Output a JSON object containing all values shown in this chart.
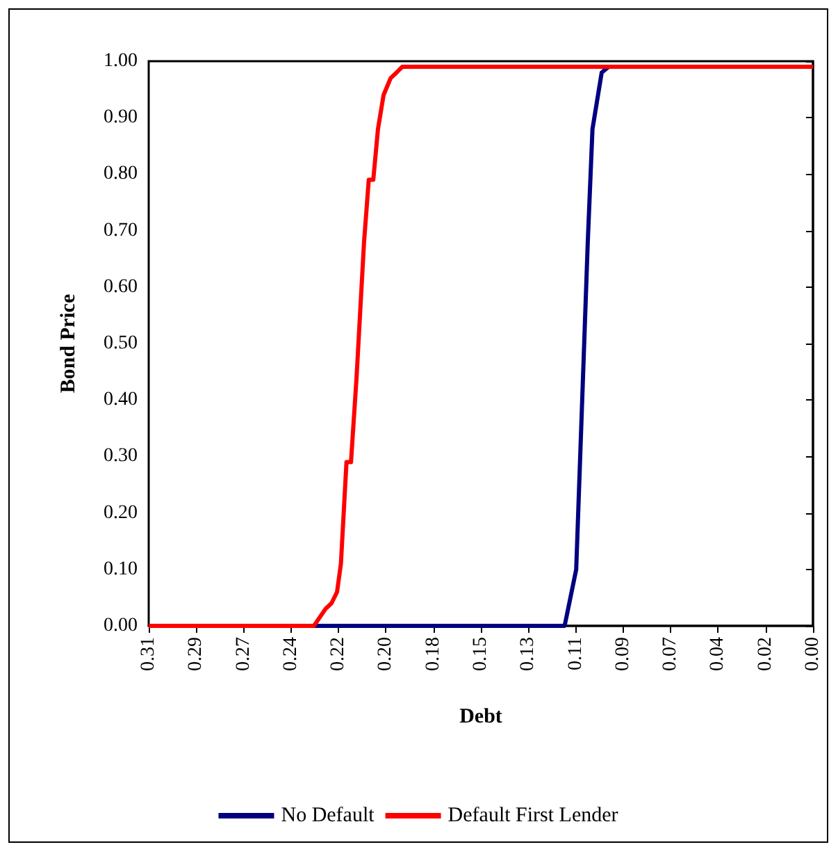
{
  "chart_data": {
    "type": "line",
    "xlabel": "Debt",
    "ylabel": "Bond Price",
    "xlim": [
      0.31,
      0
    ],
    "xticks": [
      {
        "value": 0.31,
        "label": "0.31"
      },
      {
        "value": 0.2879,
        "label": "0.29"
      },
      {
        "value": 0.2657,
        "label": "0.27"
      },
      {
        "value": 0.2436,
        "label": "0.24"
      },
      {
        "value": 0.2214,
        "label": "0.22"
      },
      {
        "value": 0.1993,
        "label": "0.20"
      },
      {
        "value": 0.1771,
        "label": "0.18"
      },
      {
        "value": 0.155,
        "label": "0.15"
      },
      {
        "value": 0.1329,
        "label": "0.13"
      },
      {
        "value": 0.1107,
        "label": "0.11"
      },
      {
        "value": 0.0886,
        "label": "0.09"
      },
      {
        "value": 0.0664,
        "label": "0.07"
      },
      {
        "value": 0.0443,
        "label": "0.04"
      },
      {
        "value": 0.0221,
        "label": "0.02"
      },
      {
        "value": 0,
        "label": "0.00"
      }
    ],
    "ylim": [
      0,
      1
    ],
    "yticks": [
      {
        "value": 0,
        "label": "0.00"
      },
      {
        "value": 0.1,
        "label": "0.10"
      },
      {
        "value": 0.2,
        "label": "0.20"
      },
      {
        "value": 0.3,
        "label": "0.30"
      },
      {
        "value": 0.4,
        "label": "0.40"
      },
      {
        "value": 0.5,
        "label": "0.50"
      },
      {
        "value": 0.6,
        "label": "0.60"
      },
      {
        "value": 0.7,
        "label": "0.70"
      },
      {
        "value": 0.8,
        "label": "0.80"
      },
      {
        "value": 0.9,
        "label": "0.90"
      },
      {
        "value": 1,
        "label": "1.00"
      }
    ],
    "grid": false,
    "legend": "bottom",
    "marker": "none",
    "line_style": "solid",
    "series": [
      {
        "name": "No Default",
        "color": "#000080",
        "x": [
          0.31,
          0.1159,
          0.1105,
          0.1077,
          0.1051,
          0.1029,
          0.0986,
          0.0954,
          0
        ],
        "values": [
          0,
          0,
          0.1,
          0.4,
          0.68,
          0.88,
          0.98,
          0.99,
          0.99
        ]
      },
      {
        "name": "Default First Lender",
        "color": "#ff0000",
        "x": [
          0.31,
          0.2329,
          0.2275,
          0.2247,
          0.2221,
          0.2203,
          0.2177,
          0.2156,
          0.213,
          0.2095,
          0.2073,
          0.2052,
          0.203,
          0.2004,
          0.1971,
          0.1943,
          0.1917,
          0
        ],
        "values": [
          0,
          0,
          0.03,
          0.04,
          0.06,
          0.11,
          0.29,
          0.29,
          0.44,
          0.68,
          0.79,
          0.79,
          0.88,
          0.94,
          0.97,
          0.98,
          0.99,
          0.99
        ]
      }
    ]
  }
}
